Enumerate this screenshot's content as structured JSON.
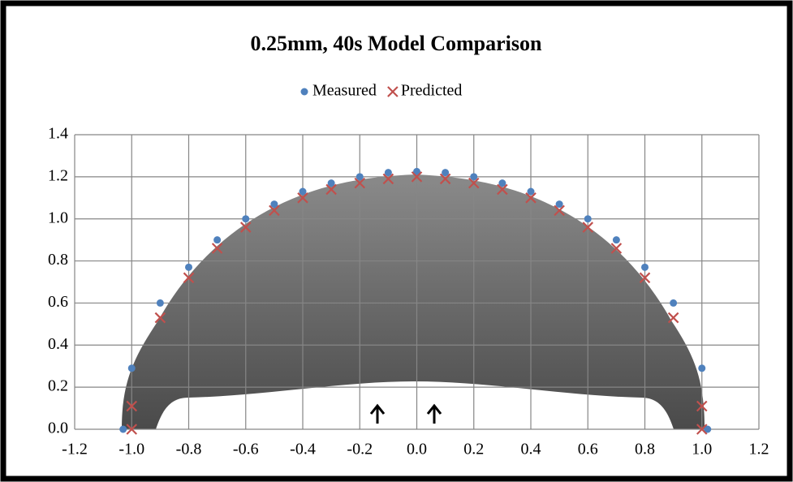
{
  "chart_data": {
    "type": "scatter",
    "title": "0.25mm, 40s Model Comparison",
    "xlim": [
      -1.2,
      1.2
    ],
    "xticks": [
      -1.2,
      {
        "value": -1,
        "label": "-1.0"
      },
      -0.8,
      -0.6,
      -0.4,
      -0.2,
      {
        "value": 0,
        "label": "0.0"
      },
      0.2,
      0.4,
      0.6,
      0.8,
      {
        "value": 1,
        "label": "1.0"
      },
      1.2
    ],
    "ylim": [
      0,
      1.4
    ],
    "yticks": [
      {
        "value": 0,
        "label": "0.0"
      },
      0.2,
      0.4,
      0.6,
      0.8,
      {
        "value": 1,
        "label": "1.0"
      },
      1.2,
      1.4
    ],
    "grid": true,
    "legend": "top",
    "series": [
      {
        "name": "Measured",
        "color": "#4f81bd",
        "marker": "circle",
        "x": [
          -1.03,
          -1.0,
          -0.9,
          -0.8,
          -0.7,
          -0.6,
          -0.5,
          -0.4,
          -0.3,
          -0.2,
          -0.1,
          0,
          0.1,
          0.2,
          0.3,
          0.4,
          0.5,
          0.6,
          0.7,
          0.8,
          0.9,
          1.0,
          1.02
        ],
        "values": [
          0,
          0.29,
          0.6,
          0.77,
          0.9,
          1.0,
          1.07,
          1.13,
          1.17,
          1.2,
          1.22,
          1.225,
          1.22,
          1.2,
          1.17,
          1.13,
          1.07,
          1.0,
          0.9,
          0.77,
          0.6,
          0.29,
          0
        ]
      },
      {
        "name": "Predicted",
        "color": "#c0504d",
        "marker": "x",
        "x": [
          -1.0,
          -1.0,
          -0.9,
          -0.8,
          -0.7,
          -0.6,
          -0.5,
          -0.4,
          -0.3,
          -0.2,
          -0.1,
          0,
          0.1,
          0.2,
          0.3,
          0.4,
          0.5,
          0.6,
          0.7,
          0.8,
          0.9,
          1.0,
          1.0
        ],
        "values": [
          0,
          0.11,
          0.53,
          0.72,
          0.86,
          0.96,
          1.04,
          1.1,
          1.14,
          1.17,
          1.19,
          1.2,
          1.19,
          1.17,
          1.14,
          1.1,
          1.04,
          0.96,
          0.86,
          0.72,
          0.53,
          0.11,
          0
        ]
      }
    ]
  }
}
